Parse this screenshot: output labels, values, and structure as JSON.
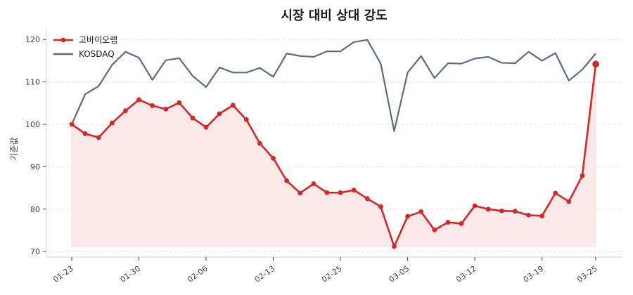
{
  "chart_data": {
    "type": "line",
    "title": "시장 대비 상대 강도",
    "xlabel": "",
    "ylabel": "기준값",
    "ylim": [
      69,
      122.5
    ],
    "yticks": [
      70,
      80,
      90,
      100,
      110,
      120
    ],
    "grid": true,
    "legend_position": "upper left",
    "xtick_labels": [
      "01-23",
      "01-30",
      "02-06",
      "02-13",
      "02-25",
      "03-05",
      "03-12",
      "03-19",
      "03-25"
    ],
    "xtick_indices": [
      0,
      5,
      10,
      15,
      20,
      25,
      30,
      35,
      39
    ],
    "series": [
      {
        "name": "고바이오랩",
        "color": "#d62728",
        "marker": "circle",
        "fill": true,
        "fill_baseline": 71.2,
        "values": [
          100.0,
          97.8,
          96.9,
          100.3,
          103.2,
          105.8,
          104.4,
          103.6,
          105.1,
          101.5,
          99.3,
          102.5,
          104.5,
          101.1,
          95.5,
          92.0,
          86.7,
          83.8,
          86.0,
          83.9,
          83.9,
          84.5,
          82.5,
          80.6,
          71.2,
          78.3,
          79.4,
          75.1,
          76.9,
          76.6,
          80.8,
          80.0,
          79.6,
          79.5,
          78.6,
          78.4,
          83.8,
          81.8,
          87.9,
          114.2
        ]
      },
      {
        "name": "KOSDAQ",
        "color": "#5a6b82",
        "marker": "none",
        "fill": false,
        "values": [
          100.0,
          107.1,
          109.0,
          114.0,
          117.1,
          115.7,
          110.5,
          115.1,
          115.6,
          111.4,
          108.8,
          113.4,
          112.2,
          112.2,
          113.3,
          111.2,
          116.7,
          116.1,
          115.9,
          117.2,
          117.2,
          119.4,
          119.9,
          114.3,
          98.4,
          112.2,
          116.1,
          110.9,
          114.4,
          114.3,
          115.5,
          115.9,
          114.5,
          114.4,
          117.1,
          115.0,
          116.8,
          110.3,
          112.9,
          116.7
        ]
      }
    ]
  },
  "colors": {
    "grid": "#e3e3e3",
    "spine": "#d5d8de",
    "fill": "#fbe9e9"
  }
}
